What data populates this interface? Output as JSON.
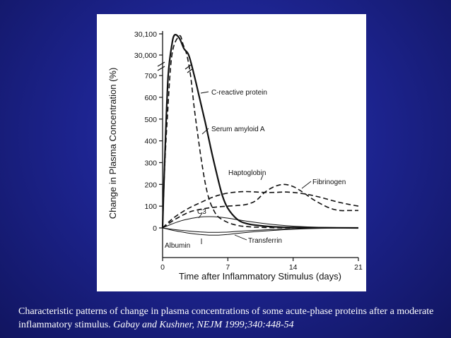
{
  "caption": {
    "text": "Characteristic patterns of change in plasma concentrations of some acute-phase proteins after a moderate inflammatory stimulus.",
    "citation": "Gabay and Kushner,  NEJM 1999;340:448-54"
  },
  "colors": {
    "background": "#1d2490",
    "panel": "#ffffff",
    "ink": "#111111",
    "caption_text": "#ffffff"
  },
  "chart_data": {
    "type": "line",
    "title": "",
    "xlabel": "Time after Inflammatory Stimulus (days)",
    "ylabel": "Change in Plasma Concentration (%)",
    "xlim": [
      0,
      21
    ],
    "x_ticks": [
      0,
      7,
      14,
      21
    ],
    "x_tick_labels": [
      "0",
      "7",
      "14",
      "21"
    ],
    "y_ticks": [
      0,
      100,
      200,
      300,
      400,
      500,
      600,
      700,
      30000,
      30100
    ],
    "y_tick_labels": [
      "0",
      "100",
      "200",
      "300",
      "400",
      "500",
      "600",
      "700",
      "30,000",
      "30,100"
    ],
    "y_axis_break": "between 700 and 30,000",
    "grid": false,
    "legend": "none (series labeled inline)",
    "series": [
      {
        "name": "C-reactive protein",
        "style": "solid-thick",
        "x": [
          0,
          0.1,
          0.3,
          0.6,
          1.0,
          1.3,
          1.8,
          2.3,
          2.8,
          3.4,
          4.0,
          4.6,
          5.2,
          5.8,
          6.4,
          7.0,
          8.0,
          9.0,
          10.5,
          12.0,
          14.0,
          17.0,
          21.0
        ],
        "y": [
          0,
          150,
          400,
          700,
          30050,
          30095,
          30080,
          30030,
          30000,
          700,
          590,
          480,
          360,
          250,
          150,
          90,
          40,
          20,
          10,
          5,
          2,
          1,
          0
        ]
      },
      {
        "name": "Serum amyloid A",
        "style": "dashed",
        "x": [
          0,
          0.2,
          0.5,
          1.0,
          1.8,
          2.2,
          2.6,
          3.0,
          3.4,
          3.8,
          4.2,
          4.6,
          5.0,
          5.5,
          6.0,
          7.0,
          8.0,
          9.0,
          11.0,
          14.0
        ],
        "y": [
          0,
          250,
          500,
          30000,
          30090,
          30050,
          30000,
          700,
          550,
          420,
          300,
          200,
          130,
          80,
          50,
          25,
          12,
          6,
          2,
          0
        ]
      },
      {
        "name": "Haptoglobin",
        "style": "dashed",
        "x": [
          0,
          1,
          2,
          3,
          4,
          5,
          6,
          7,
          8,
          9,
          10,
          11,
          12,
          13,
          14,
          15,
          16,
          17,
          18,
          19,
          20,
          21
        ],
        "y": [
          0,
          40,
          70,
          95,
          115,
          135,
          150,
          160,
          165,
          167,
          165,
          163,
          163,
          165,
          163,
          158,
          150,
          140,
          128,
          117,
          108,
          100
        ]
      },
      {
        "name": "Fibrinogen",
        "style": "dashed",
        "x": [
          0,
          1,
          2,
          3,
          4,
          5,
          6,
          7,
          8,
          9,
          10,
          11,
          12,
          13,
          14,
          15,
          16,
          17,
          18,
          19,
          20,
          21
        ],
        "y": [
          0,
          30,
          55,
          75,
          85,
          92,
          97,
          100,
          103,
          108,
          125,
          165,
          190,
          200,
          190,
          165,
          135,
          110,
          90,
          80,
          80,
          80
        ]
      },
      {
        "name": "C3",
        "style": "solid-thin",
        "x": [
          0,
          1,
          2,
          3,
          4,
          5,
          6,
          7,
          8,
          10,
          12,
          14,
          17,
          21
        ],
        "y": [
          0,
          18,
          33,
          43,
          50,
          52,
          50,
          45,
          38,
          25,
          15,
          8,
          3,
          0
        ]
      },
      {
        "name": "Albumin",
        "style": "solid-thin",
        "x": [
          0,
          1,
          2,
          3,
          4,
          5,
          6,
          7,
          8,
          10,
          12,
          14,
          17,
          21
        ],
        "y": [
          0,
          -10,
          -18,
          -25,
          -30,
          -33,
          -33,
          -30,
          -25,
          -17,
          -11,
          -6,
          -2,
          0
        ]
      },
      {
        "name": "Transferrin",
        "style": "solid-thin",
        "x": [
          0,
          1,
          2,
          3,
          4,
          5,
          6,
          7,
          8,
          10,
          12,
          14,
          17,
          21
        ],
        "y": [
          0,
          -6,
          -11,
          -15,
          -18,
          -20,
          -20,
          -19,
          -16,
          -11,
          -7,
          -4,
          -1,
          0
        ]
      }
    ]
  }
}
